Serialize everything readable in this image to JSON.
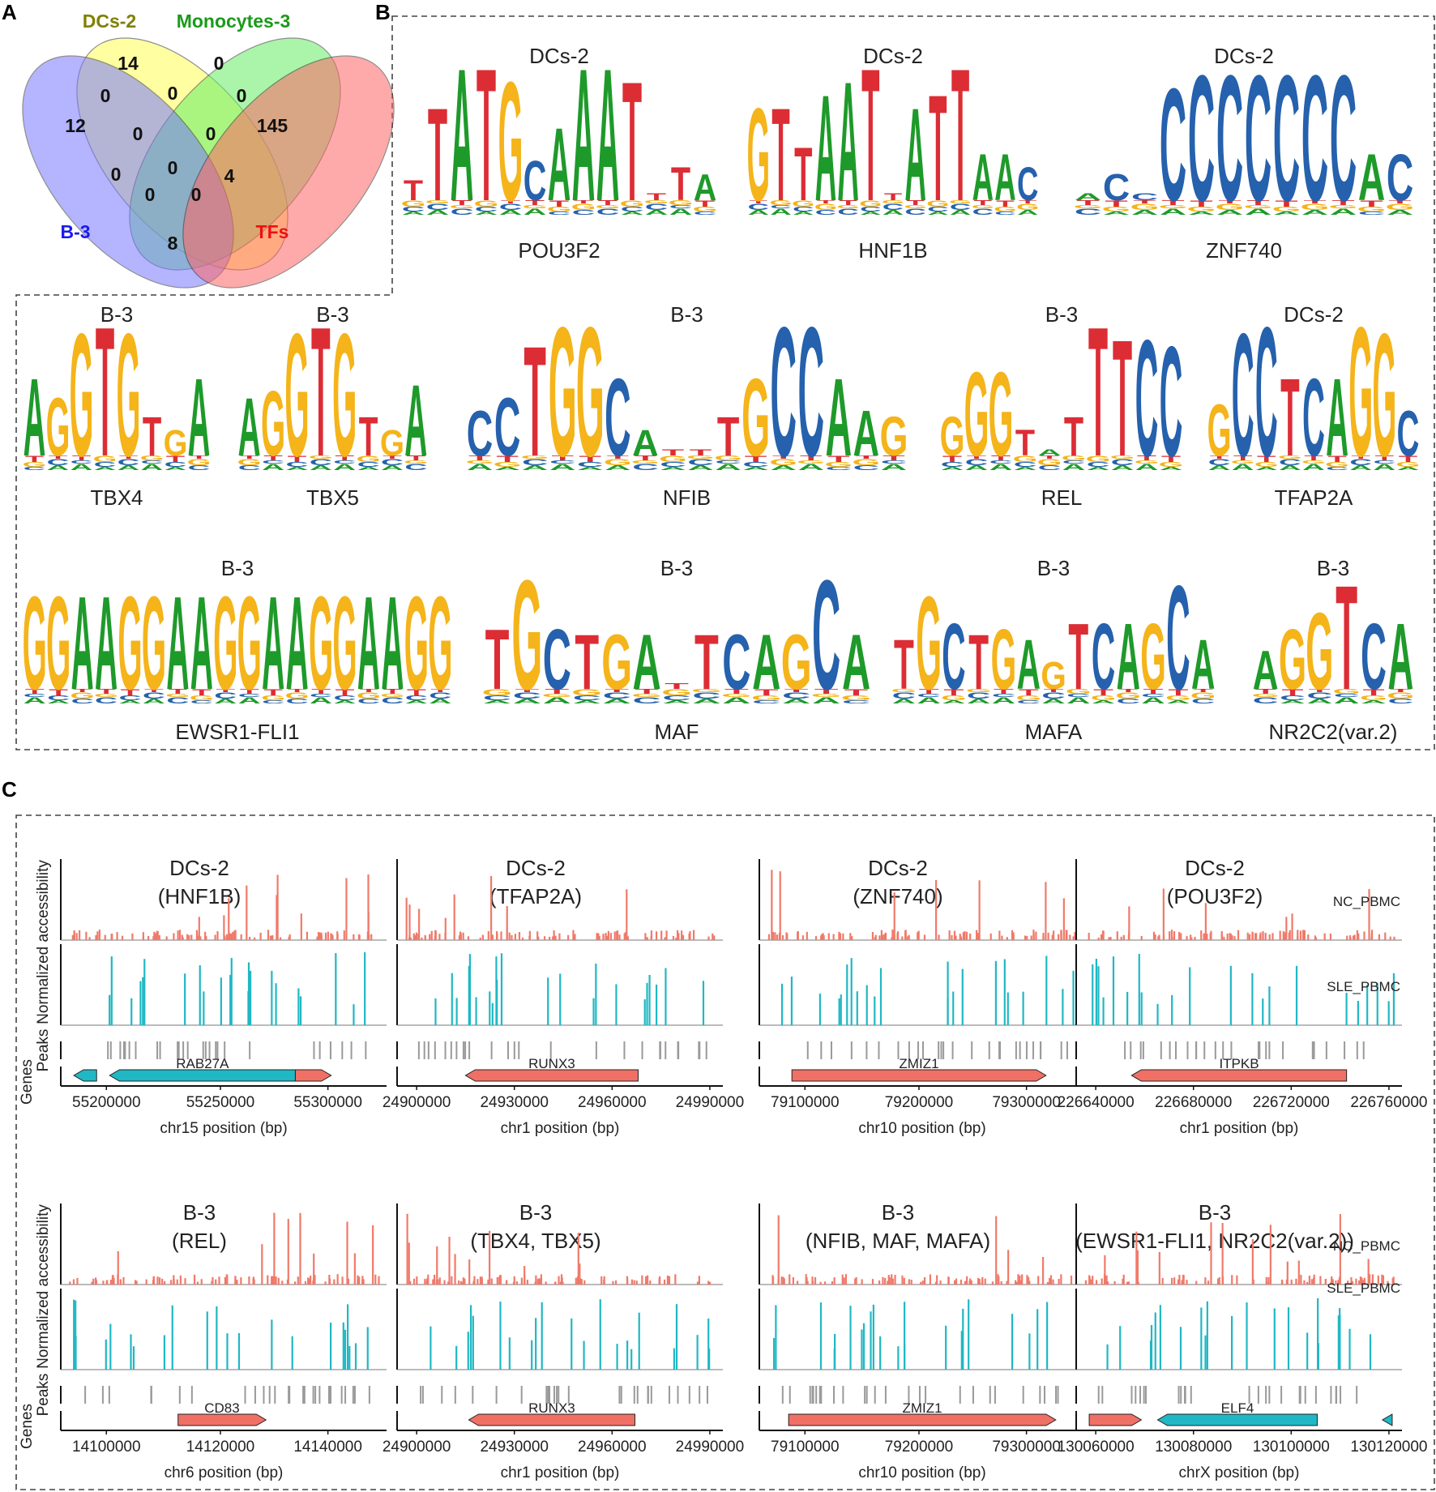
{
  "panels": {
    "A": "A",
    "B": "B",
    "C": "C"
  },
  "venn": {
    "sets": [
      {
        "name": "DCs-2",
        "color": "#808000",
        "fill": "#ffff55"
      },
      {
        "name": "Monocytes-3",
        "color": "#1a9a1a",
        "fill": "#66ee66"
      },
      {
        "name": "B-3",
        "color": "#1a1aee",
        "fill": "#7777ff"
      },
      {
        "name": "TFs",
        "color": "#ee1111",
        "fill": "#ff6666"
      }
    ],
    "counts": [
      "14",
      "0",
      "12",
      "0",
      "0",
      "0",
      "145",
      "0",
      "0",
      "0",
      "0",
      "4",
      "0",
      "0",
      "8"
    ]
  },
  "motifs": [
    {
      "cluster": "DCs-2",
      "tf": "POU3F2",
      "seq": "TTATGCAAATTTA",
      "heights": [
        0.3,
        1.4,
        2.0,
        2.0,
        1.8,
        0.6,
        1.1,
        2.0,
        2.0,
        1.8,
        0.1,
        0.5,
        0.4
      ]
    },
    {
      "cluster": "DCs-2",
      "tf": "HNF1B",
      "seq": "GTTAATTATTAAC",
      "heights": [
        1.4,
        1.4,
        0.8,
        1.6,
        1.8,
        2.0,
        0.1,
        1.4,
        1.6,
        2.0,
        0.7,
        0.7,
        0.5
      ]
    },
    {
      "cluster": "DCs-2",
      "tf": "ZNF740",
      "seq": "ACCCCCCCCCAC",
      "heights": [
        0.1,
        0.4,
        0.1,
        1.7,
        1.9,
        1.9,
        1.9,
        1.9,
        1.9,
        1.9,
        0.7,
        0.7
      ]
    },
    {
      "cluster": "B-3",
      "tf": "TBX4",
      "seq": "AGGTGTGA",
      "heights": [
        1.2,
        0.9,
        1.9,
        2.0,
        1.9,
        0.6,
        0.4,
        1.2
      ]
    },
    {
      "cluster": "B-3",
      "tf": "TBX5",
      "seq": "AGGTGTGA",
      "heights": [
        0.9,
        1.0,
        1.9,
        2.0,
        1.9,
        0.6,
        0.4,
        1.1
      ]
    },
    {
      "cluster": "B-3",
      "tf": "NFIB",
      "seq": "CCTGGCATTTGCCAAG",
      "heights": [
        0.7,
        0.9,
        1.7,
        2.0,
        2.0,
        1.2,
        0.4,
        0.1,
        0.1,
        0.6,
        1.2,
        2.0,
        2.0,
        1.2,
        0.7,
        0.6
      ]
    },
    {
      "cluster": "B-3",
      "tf": "REL",
      "seq": "GGGTATTTCC",
      "heights": [
        0.6,
        1.3,
        1.3,
        0.4,
        0.1,
        0.6,
        2.0,
        1.8,
        1.8,
        1.7
      ]
    },
    {
      "cluster": "DCs-2",
      "tf": "TFAP2A",
      "seq": "GCCTCAGGC",
      "heights": [
        0.8,
        1.9,
        2.0,
        1.2,
        1.2,
        1.2,
        2.0,
        1.9,
        0.7
      ]
    },
    {
      "cluster": "B-3",
      "tf": "EWSR1-FLI1",
      "seq": "GGAAGGAAGGAAGGAAGG",
      "heights": [
        1.7,
        1.7,
        1.7,
        1.7,
        1.7,
        1.7,
        1.7,
        1.7,
        1.7,
        1.7,
        1.7,
        1.7,
        1.7,
        1.7,
        1.7,
        1.7,
        1.7,
        1.7
      ]
    },
    {
      "cluster": "B-3",
      "tf": "MAF",
      "seq": "TGCTGATTCAGCA",
      "heights": [
        1.1,
        2.0,
        1.1,
        1.0,
        1.0,
        1.0,
        0.1,
        1.0,
        1.0,
        1.0,
        1.0,
        2.0,
        1.0
      ]
    },
    {
      "cluster": "B-3",
      "tf": "MAFA",
      "seq": "TGCTGAGTCAGCA",
      "heights": [
        0.9,
        1.7,
        1.2,
        1.0,
        1.1,
        0.9,
        0.5,
        1.2,
        1.2,
        1.2,
        1.2,
        1.9,
        0.9
      ]
    },
    {
      "cluster": "B-3",
      "tf": "NR2C2(var.2)",
      "seq": "AGGTCA",
      "heights": [
        0.7,
        1.1,
        1.4,
        1.9,
        1.2,
        1.2
      ]
    }
  ],
  "tracks": {
    "ylabel_top": "Normalized accessibility",
    "ylabel_peaks": "Peaks",
    "ylabel_genes": "Genes",
    "nc_label": "NC_PBMC",
    "sle_label": "SLE_PBMC",
    "nc_color": "#f07a6a",
    "sle_color": "#1fb8c4",
    "gene_red": "#f07065",
    "gene_cyan": "#1fb8c4"
  },
  "loci": [
    {
      "cluster": "DCs-2",
      "tfs": "(HNF1B)",
      "xlabel": "chr15 position (bp)",
      "ticks": [
        "55200000",
        "55250000",
        "55300000"
      ],
      "gene": "RAB27A"
    },
    {
      "cluster": "DCs-2",
      "tfs": "(TFAP2A)",
      "xlabel": "chr1 position (bp)",
      "ticks": [
        "24900000",
        "24930000",
        "24960000",
        "24990000"
      ],
      "gene": "RUNX3"
    },
    {
      "cluster": "DCs-2",
      "tfs": "(ZNF740)",
      "xlabel": "chr10 position (bp)",
      "ticks": [
        "79100000",
        "79200000",
        "79300000"
      ],
      "gene": "ZMIZ1"
    },
    {
      "cluster": "DCs-2",
      "tfs": "(POU3F2)",
      "xlabel": "chr1 position (bp)",
      "ticks": [
        "226640000",
        "226680000",
        "226720000",
        "226760000"
      ],
      "gene": "ITPKB"
    },
    {
      "cluster": "B-3",
      "tfs": "(REL)",
      "xlabel": "chr6 position (bp)",
      "ticks": [
        "14100000",
        "14120000",
        "14140000"
      ],
      "gene": "CD83"
    },
    {
      "cluster": "B-3",
      "tfs": "(TBX4, TBX5)",
      "xlabel": "chr1 position (bp)",
      "ticks": [
        "24900000",
        "24930000",
        "24960000",
        "24990000"
      ],
      "gene": "RUNX3"
    },
    {
      "cluster": "B-3",
      "tfs": "(NFIB, MAF, MAFA)",
      "xlabel": "chr10 position (bp)",
      "ticks": [
        "79100000",
        "79200000",
        "79300000"
      ],
      "gene": "ZMIZ1"
    },
    {
      "cluster": "B-3",
      "tfs": "(EWSR1-FLI1, NR2C2(var.2))",
      "xlabel": "chrX position (bp)",
      "ticks": [
        "130060000",
        "130080000",
        "130100000",
        "130120000"
      ],
      "gene": "ELF4"
    }
  ]
}
